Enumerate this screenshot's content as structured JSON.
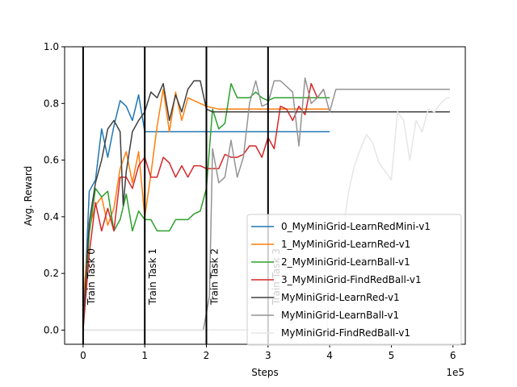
{
  "chart_data": {
    "type": "line",
    "title": "",
    "xlabel": "Steps",
    "ylabel": "Avg. Reward",
    "x_multiplier_label": "1e5",
    "xlim": [
      -0.3,
      6.2
    ],
    "ylim": [
      -0.05,
      1.0
    ],
    "x_ticks": [
      0,
      1,
      2,
      3,
      4,
      5,
      6
    ],
    "x_tick_labels": [
      "0",
      "1",
      "2",
      "3",
      "4",
      "5",
      "6"
    ],
    "y_ticks": [
      0.0,
      0.2,
      0.4,
      0.6,
      0.8,
      1.0
    ],
    "y_tick_labels": [
      "0.0",
      "0.2",
      "0.4",
      "0.6",
      "0.8",
      "1.0"
    ],
    "grid": false,
    "legend_position": "lower-right",
    "task_markers": [
      {
        "x": 0,
        "label": "Train Task 0"
      },
      {
        "x": 1,
        "label": "Train Task 1"
      },
      {
        "x": 2,
        "label": "Train Task 2"
      },
      {
        "x": 3,
        "label": "Train Task 3"
      }
    ],
    "series": [
      {
        "name": "0_MyMiniGrid-LearnRedMini-v1",
        "color": "#1f77b4",
        "points": [
          [
            0,
            0
          ],
          [
            0.1,
            0.49
          ],
          [
            0.2,
            0.53
          ],
          [
            0.3,
            0.71
          ],
          [
            0.4,
            0.61
          ],
          [
            0.5,
            0.72
          ],
          [
            0.6,
            0.81
          ],
          [
            0.7,
            0.79
          ],
          [
            0.8,
            0.74
          ],
          [
            0.9,
            0.83
          ],
          [
            1.0,
            0.7
          ],
          [
            1.2,
            0.7
          ],
          [
            1.5,
            0.7
          ],
          [
            2.0,
            0.7
          ],
          [
            2.5,
            0.7
          ],
          [
            3.0,
            0.7
          ],
          [
            3.5,
            0.7
          ],
          [
            4.0,
            0.7
          ]
        ]
      },
      {
        "name": "1_MyMiniGrid-LearnRed-v1",
        "color": "#ff7f0e",
        "points": [
          [
            0,
            0.1
          ],
          [
            0.1,
            0.36
          ],
          [
            0.2,
            0.44
          ],
          [
            0.3,
            0.47
          ],
          [
            0.4,
            0.37
          ],
          [
            0.5,
            0.43
          ],
          [
            0.6,
            0.57
          ],
          [
            0.7,
            0.63
          ],
          [
            0.8,
            0.52
          ],
          [
            0.9,
            0.63
          ],
          [
            1.0,
            0.4
          ],
          [
            1.1,
            0.55
          ],
          [
            1.2,
            0.72
          ],
          [
            1.3,
            0.85
          ],
          [
            1.4,
            0.7
          ],
          [
            1.5,
            0.84
          ],
          [
            1.6,
            0.74
          ],
          [
            1.7,
            0.82
          ],
          [
            1.8,
            0.81
          ],
          [
            1.9,
            0.8
          ],
          [
            2.0,
            0.79
          ],
          [
            2.2,
            0.78
          ],
          [
            2.5,
            0.78
          ],
          [
            3.0,
            0.78
          ],
          [
            3.5,
            0.78
          ],
          [
            4.0,
            0.78
          ]
        ]
      },
      {
        "name": "2_MyMiniGrid-LearnBall-v1",
        "color": "#2ca02c",
        "points": [
          [
            0,
            0
          ],
          [
            0.1,
            0.34
          ],
          [
            0.2,
            0.5
          ],
          [
            0.3,
            0.47
          ],
          [
            0.4,
            0.49
          ],
          [
            0.5,
            0.35
          ],
          [
            0.6,
            0.39
          ],
          [
            0.7,
            0.48
          ],
          [
            0.8,
            0.35
          ],
          [
            0.9,
            0.42
          ],
          [
            1.0,
            0.39
          ],
          [
            1.1,
            0.39
          ],
          [
            1.2,
            0.35
          ],
          [
            1.3,
            0.35
          ],
          [
            1.4,
            0.35
          ],
          [
            1.5,
            0.39
          ],
          [
            1.6,
            0.39
          ],
          [
            1.7,
            0.39
          ],
          [
            1.8,
            0.41
          ],
          [
            1.9,
            0.42
          ],
          [
            2.0,
            0.5
          ],
          [
            2.1,
            0.78
          ],
          [
            2.2,
            0.71
          ],
          [
            2.3,
            0.73
          ],
          [
            2.4,
            0.87
          ],
          [
            2.5,
            0.82
          ],
          [
            2.6,
            0.82
          ],
          [
            2.7,
            0.82
          ],
          [
            2.8,
            0.84
          ],
          [
            2.9,
            0.82
          ],
          [
            3.0,
            0.81
          ],
          [
            3.1,
            0.82
          ],
          [
            3.5,
            0.82
          ],
          [
            4.0,
            0.82
          ]
        ]
      },
      {
        "name": "3_MyMiniGrid-FindRedBall-v1",
        "color": "#d62728",
        "points": [
          [
            0,
            0
          ],
          [
            0.1,
            0.27
          ],
          [
            0.2,
            0.45
          ],
          [
            0.3,
            0.35
          ],
          [
            0.4,
            0.43
          ],
          [
            0.5,
            0.35
          ],
          [
            0.6,
            0.54
          ],
          [
            0.7,
            0.54
          ],
          [
            0.8,
            0.5
          ],
          [
            0.9,
            0.58
          ],
          [
            1.0,
            0.61
          ],
          [
            1.1,
            0.54
          ],
          [
            1.2,
            0.54
          ],
          [
            1.3,
            0.61
          ],
          [
            1.4,
            0.59
          ],
          [
            1.5,
            0.54
          ],
          [
            1.6,
            0.58
          ],
          [
            1.7,
            0.54
          ],
          [
            1.8,
            0.58
          ],
          [
            1.9,
            0.58
          ],
          [
            2.0,
            0.57
          ],
          [
            2.2,
            0.57
          ],
          [
            2.3,
            0.62
          ],
          [
            2.4,
            0.61
          ],
          [
            2.5,
            0.61
          ],
          [
            2.6,
            0.62
          ],
          [
            2.7,
            0.65
          ],
          [
            2.8,
            0.65
          ],
          [
            2.9,
            0.61
          ],
          [
            3.0,
            0.68
          ],
          [
            3.1,
            0.64
          ],
          [
            3.2,
            0.79
          ],
          [
            3.3,
            0.78
          ],
          [
            3.4,
            0.74
          ],
          [
            3.5,
            0.79
          ],
          [
            3.6,
            0.76
          ],
          [
            3.7,
            0.87
          ],
          [
            3.8,
            0.82
          ],
          [
            3.9,
            0.85
          ]
        ]
      },
      {
        "name": "MyMiniGrid-LearnRed-v1",
        "color": "#404040",
        "points": [
          [
            0,
            0.02
          ],
          [
            0.1,
            0.38
          ],
          [
            0.2,
            0.52
          ],
          [
            0.3,
            0.6
          ],
          [
            0.4,
            0.71
          ],
          [
            0.5,
            0.74
          ],
          [
            0.6,
            0.7
          ],
          [
            0.65,
            0.44
          ],
          [
            0.7,
            0.56
          ],
          [
            0.8,
            0.7
          ],
          [
            0.9,
            0.74
          ],
          [
            1.0,
            0.77
          ],
          [
            1.1,
            0.84
          ],
          [
            1.2,
            0.82
          ],
          [
            1.3,
            0.87
          ],
          [
            1.4,
            0.74
          ],
          [
            1.5,
            0.83
          ],
          [
            1.6,
            0.77
          ],
          [
            1.7,
            0.85
          ],
          [
            1.8,
            0.88
          ],
          [
            1.9,
            0.88
          ],
          [
            2.0,
            0.78
          ],
          [
            2.1,
            0.77
          ],
          [
            2.5,
            0.77
          ],
          [
            3.0,
            0.77
          ],
          [
            4.0,
            0.77
          ],
          [
            5.0,
            0.77
          ],
          [
            5.95,
            0.77
          ]
        ]
      },
      {
        "name": "MyMiniGrid-LearnBall-v1",
        "color": "#949494",
        "points": [
          [
            0,
            0
          ],
          [
            1.0,
            0
          ],
          [
            1.5,
            0
          ],
          [
            1.95,
            0
          ],
          [
            2.05,
            0.12
          ],
          [
            2.1,
            0.64
          ],
          [
            2.2,
            0.52
          ],
          [
            2.3,
            0.54
          ],
          [
            2.4,
            0.67
          ],
          [
            2.5,
            0.54
          ],
          [
            2.6,
            0.61
          ],
          [
            2.7,
            0.8
          ],
          [
            2.8,
            0.88
          ],
          [
            2.9,
            0.79
          ],
          [
            3.0,
            0.8
          ],
          [
            3.1,
            0.88
          ],
          [
            3.2,
            0.88
          ],
          [
            3.3,
            0.86
          ],
          [
            3.4,
            0.84
          ],
          [
            3.5,
            0.65
          ],
          [
            3.6,
            0.89
          ],
          [
            3.7,
            0.8
          ],
          [
            3.8,
            0.82
          ],
          [
            3.9,
            0.85
          ],
          [
            4.0,
            0.77
          ],
          [
            4.1,
            0.85
          ],
          [
            4.5,
            0.85
          ],
          [
            5.0,
            0.85
          ],
          [
            5.5,
            0.85
          ],
          [
            5.95,
            0.85
          ]
        ]
      },
      {
        "name": "MyMiniGrid-FindRedBall-v1",
        "color": "#e6e6e6",
        "points": [
          [
            0,
            0
          ],
          [
            1.0,
            0
          ],
          [
            2.0,
            0
          ],
          [
            3.0,
            0
          ],
          [
            3.5,
            0
          ],
          [
            3.95,
            0
          ],
          [
            4.05,
            0.15
          ],
          [
            4.2,
            0.32
          ],
          [
            4.3,
            0.48
          ],
          [
            4.4,
            0.58
          ],
          [
            4.5,
            0.64
          ],
          [
            4.6,
            0.69
          ],
          [
            4.7,
            0.66
          ],
          [
            4.8,
            0.59
          ],
          [
            4.9,
            0.56
          ],
          [
            5.0,
            0.53
          ],
          [
            5.1,
            0.77
          ],
          [
            5.2,
            0.74
          ],
          [
            5.3,
            0.6
          ],
          [
            5.4,
            0.74
          ],
          [
            5.5,
            0.7
          ],
          [
            5.6,
            0.78
          ],
          [
            5.7,
            0.77
          ],
          [
            5.8,
            0.8
          ],
          [
            5.9,
            0.82
          ],
          [
            5.95,
            0.82
          ]
        ]
      }
    ]
  }
}
